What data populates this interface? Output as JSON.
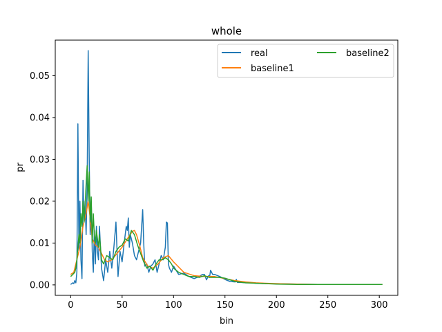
{
  "chart_data": {
    "type": "line",
    "title": "whole",
    "xlabel": "bin",
    "ylabel": "pr",
    "xlim": [
      -15,
      318
    ],
    "ylim": [
      -0.0025,
      0.0585
    ],
    "xticks": [
      0,
      50,
      100,
      150,
      200,
      250,
      300
    ],
    "xtick_labels": [
      "0",
      "50",
      "100",
      "150",
      "200",
      "250",
      "300"
    ],
    "yticks": [
      0.0,
      0.01,
      0.02,
      0.03,
      0.04,
      0.05
    ],
    "ytick_labels": [
      "0.00",
      "0.01",
      "0.02",
      "0.03",
      "0.04",
      "0.05"
    ],
    "grid": false,
    "legend": {
      "placement": "top-right",
      "columns": 2
    },
    "series": [
      {
        "name": "real",
        "color": "#1f77b4",
        "x": [
          0,
          2,
          3,
          4,
          5,
          6,
          7,
          8,
          9,
          10,
          11,
          12,
          13,
          14,
          15,
          16,
          17,
          18,
          19,
          20,
          21,
          22,
          23,
          24,
          25,
          26,
          27,
          28,
          30,
          32,
          34,
          36,
          38,
          40,
          42,
          44,
          46,
          48,
          50,
          52,
          54,
          55,
          56,
          57,
          58,
          60,
          62,
          64,
          66,
          68,
          70,
          71,
          72,
          74,
          76,
          78,
          80,
          82,
          84,
          86,
          88,
          90,
          92,
          93,
          94,
          95,
          96,
          98,
          100,
          105,
          110,
          115,
          120,
          125,
          128,
          130,
          132,
          134,
          135,
          136,
          138,
          140,
          145,
          150,
          155,
          160,
          161,
          162,
          165,
          170,
          175,
          180,
          190,
          200,
          220,
          240,
          260,
          280,
          300,
          303
        ],
        "y": [
          0.0001,
          0.0005,
          0.0003,
          0.001,
          0.0005,
          0.003,
          0.0385,
          0.008,
          0.02,
          0.006,
          0.0015,
          0.025,
          0.015,
          0.02,
          0.012,
          0.024,
          0.056,
          0.03,
          0.012,
          0.02,
          0.008,
          0.003,
          0.013,
          0.005,
          0.014,
          0.008,
          0.006,
          0.014,
          0.004,
          0.001,
          0.006,
          0.003,
          0.008,
          0.004,
          0.009,
          0.015,
          0.002,
          0.008,
          0.0055,
          0.01,
          0.014,
          0.013,
          0.016,
          0.009,
          0.012,
          0.01,
          0.007,
          0.006,
          0.008,
          0.01,
          0.018,
          0.01,
          0.0045,
          0.005,
          0.003,
          0.0045,
          0.005,
          0.006,
          0.003,
          0.005,
          0.007,
          0.006,
          0.009,
          0.015,
          0.0148,
          0.005,
          0.004,
          0.003,
          0.0045,
          0.0025,
          0.0028,
          0.002,
          0.0015,
          0.002,
          0.0025,
          0.0025,
          0.0012,
          0.0022,
          0.0018,
          0.0035,
          0.0025,
          0.0025,
          0.002,
          0.0013,
          0.0008,
          0.0007,
          0.0013,
          0.0006,
          0.0006,
          0.0005,
          0.0005,
          0.0004,
          0.0003,
          0.0003,
          0.0002,
          0.0001,
          0.0001,
          0.0001,
          0.0001,
          0.0001
        ]
      },
      {
        "name": "baseline1",
        "color": "#ff7f0e",
        "x": [
          0,
          3,
          6,
          9,
          12,
          15,
          17,
          19,
          21,
          24,
          27,
          30,
          33,
          36,
          40,
          45,
          50,
          55,
          60,
          62,
          64,
          67,
          70,
          75,
          80,
          85,
          90,
          95,
          100,
          110,
          120,
          130,
          140,
          150,
          160,
          170,
          180,
          200,
          220,
          240,
          260,
          280,
          300,
          303
        ],
        "y": [
          0.0025,
          0.003,
          0.006,
          0.009,
          0.014,
          0.017,
          0.02,
          0.016,
          0.011,
          0.0095,
          0.009,
          0.0075,
          0.006,
          0.0055,
          0.006,
          0.0075,
          0.009,
          0.011,
          0.0128,
          0.013,
          0.012,
          0.0095,
          0.0065,
          0.0045,
          0.004,
          0.005,
          0.0065,
          0.007,
          0.0055,
          0.003,
          0.0022,
          0.002,
          0.002,
          0.0015,
          0.001,
          0.0007,
          0.0005,
          0.0003,
          0.0002,
          0.0001,
          0.0001,
          0.0001,
          0.0001,
          0.0001
        ]
      },
      {
        "name": "baseline2",
        "color": "#2ca02c",
        "x": [
          0,
          2,
          4,
          5,
          6,
          7,
          8,
          9,
          10,
          11,
          12,
          13,
          14,
          15,
          16,
          17,
          18,
          19,
          20,
          21,
          22,
          23,
          24,
          25,
          26,
          27,
          28,
          30,
          32,
          35,
          38,
          41,
          44,
          47,
          50,
          53,
          56,
          59,
          62,
          65,
          68,
          71,
          74,
          77,
          80,
          83,
          86,
          89,
          92,
          95,
          98,
          100,
          105,
          110,
          115,
          120,
          125,
          130,
          135,
          140,
          145,
          150,
          155,
          160,
          170,
          180,
          200,
          220,
          240,
          260,
          280,
          300,
          303
        ],
        "y": [
          0.002,
          0.0025,
          0.003,
          0.004,
          0.006,
          0.009,
          0.012,
          0.01,
          0.017,
          0.014,
          0.02,
          0.015,
          0.019,
          0.024,
          0.0285,
          0.02,
          0.027,
          0.015,
          0.021,
          0.01,
          0.017,
          0.012,
          0.01,
          0.013,
          0.011,
          0.009,
          0.012,
          0.006,
          0.005,
          0.007,
          0.0065,
          0.006,
          0.008,
          0.009,
          0.0095,
          0.011,
          0.0105,
          0.013,
          0.012,
          0.0095,
          0.0075,
          0.0055,
          0.004,
          0.0045,
          0.0035,
          0.005,
          0.006,
          0.006,
          0.0065,
          0.006,
          0.005,
          0.004,
          0.003,
          0.0025,
          0.002,
          0.002,
          0.0018,
          0.0022,
          0.0018,
          0.0018,
          0.0018,
          0.0016,
          0.0012,
          0.0008,
          0.0005,
          0.0004,
          0.0002,
          0.0001,
          0.0001,
          0.0001,
          0.0001,
          0.0001,
          0.0001
        ]
      }
    ]
  }
}
